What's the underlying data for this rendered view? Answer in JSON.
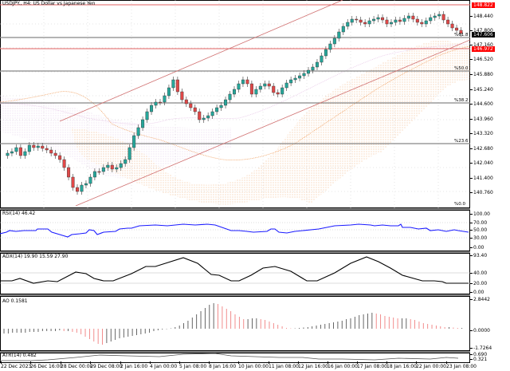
{
  "title": "USDJPY., H4:  US Dollar vs Japanese Yen",
  "main": {
    "price_axis": [
      "148.440",
      "147.800",
      "147.160",
      "146.520",
      "145.880",
      "145.240",
      "144.600",
      "143.960",
      "143.320",
      "142.680",
      "142.040",
      "141.400",
      "140.760"
    ],
    "high_tag": {
      "value": "148.822",
      "color": "#ff0000"
    },
    "bid_tag": {
      "value": "147.606",
      "color": "#000000"
    },
    "line_tag": {
      "value": "146.972",
      "color": "#ff0000"
    },
    "fib_levels": [
      "%61.8",
      "%50.0",
      "%38.2",
      "%23.6",
      "%0.0"
    ]
  },
  "rsi": {
    "label": "RSI(14) 46.42",
    "axis": [
      "100.00",
      "70.00",
      "50.00",
      "30.00",
      "0.00"
    ]
  },
  "adx": {
    "label": "ADX(14) 19.90 15.59 27.90",
    "axis": [
      "93.40",
      "40.00",
      "20.00",
      "0.00"
    ]
  },
  "ao": {
    "label": "AO 0.1581",
    "axis": [
      "2.8442",
      "0.0000",
      "-1.7264"
    ]
  },
  "atr": {
    "label": "ATR(14) 0.482",
    "axis": [
      "0.690",
      "0.321"
    ]
  },
  "time_axis": [
    "22 Dec 2023",
    "26 Dec 16:00",
    "28 Dec 00:00",
    "29 Dec 08:00",
    "2 Jan 16:00",
    "4 Jan 00:00",
    "5 Jan 08:00",
    "8 Jan 16:00",
    "10 Jan 00:00",
    "11 Jan 08:00",
    "12 Jan 16:00",
    "16 Jan 00:00",
    "17 Jan 08:00",
    "18 Jan 16:00",
    "22 Jan 00:00",
    "23 Jan 08:00"
  ],
  "chart_data": [
    {
      "type": "candlestick",
      "title": "USDJPY., H4: US Dollar vs Japanese Yen",
      "ylim": [
        140.4,
        149.0
      ],
      "x": [
        "22 Dec 2023",
        "26 Dec 16:00",
        "28 Dec 00:00",
        "29 Dec 08:00",
        "2 Jan 16:00",
        "4 Jan 00:00",
        "5 Jan 08:00",
        "8 Jan 16:00",
        "10 Jan 00:00",
        "11 Jan 08:00",
        "12 Jan 16:00",
        "16 Jan 00:00",
        "17 Jan 08:00",
        "18 Jan 16:00",
        "22 Jan 00:00",
        "23 Jan 08:00"
      ],
      "close_approx": [
        142.3,
        142.4,
        141.0,
        141.2,
        143.0,
        144.6,
        144.9,
        144.0,
        145.3,
        144.9,
        146.0,
        147.8,
        148.4,
        148.2,
        148.3,
        147.6
      ],
      "horizontal_lines": {
        "high": 148.822,
        "bid": 147.606,
        "red_level": 146.972
      },
      "fibonacci": {
        "61.8": 147.45,
        "50.0": 145.95,
        "38.2": 144.45,
        "23.6": 142.7,
        "0.0": 140.4
      },
      "indicators": [
        "Ichimoku cloud",
        "Ascending channel"
      ]
    },
    {
      "type": "line",
      "title": "RSI(14)",
      "current": 46.42,
      "ylim": [
        0,
        100
      ],
      "levels": [
        30,
        50,
        70
      ]
    },
    {
      "type": "line",
      "title": "ADX(14)",
      "values_current": [
        19.9,
        15.59,
        27.9
      ],
      "ylim": [
        0,
        93.4
      ],
      "levels": [
        20,
        40
      ]
    },
    {
      "type": "bar",
      "title": "AO",
      "current": 0.1581,
      "ylim": [
        -1.7264,
        2.8442
      ]
    },
    {
      "type": "line",
      "title": "ATR(14)",
      "current": 0.482,
      "ylim": [
        0.321,
        0.69
      ]
    }
  ]
}
